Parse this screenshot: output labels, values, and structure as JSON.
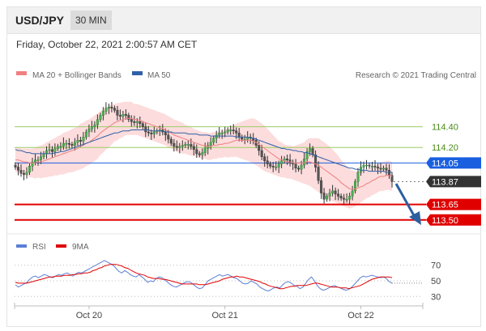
{
  "header": {
    "symbol": "USD/JPY",
    "interval": "30 MIN"
  },
  "datetime": "Friday, October 22, 2021 2:00:57 AM CET",
  "credit": "Research © 2021 Trading Central",
  "colors": {
    "bollinger": "#f08080",
    "ma50": "#3060a8",
    "rsi": "#5b7fd6",
    "rsi_ma": "#e00000",
    "resistance": "#9ccc65",
    "support": "#e00000",
    "pivot": "#1a5fe0",
    "last": "#333333",
    "arrow": "#2c5fa0"
  },
  "chart_data": [
    {
      "type": "candlestick",
      "legend": [
        "MA 20 + Bollinger Bands",
        "MA 50"
      ],
      "ylim": [
        113.42,
        114.78
      ],
      "x_ticks": [
        {
          "label": "Oct 20",
          "index": 26
        },
        {
          "label": "Oct 21",
          "index": 74
        },
        {
          "label": "Oct 22",
          "index": 122
        }
      ],
      "levels": [
        {
          "value": 114.4,
          "label": "114.40",
          "kind": "resistance"
        },
        {
          "value": 114.2,
          "label": "114.20",
          "kind": "resistance"
        },
        {
          "value": 114.05,
          "label": "114.05",
          "kind": "pivot"
        },
        {
          "value": 113.87,
          "label": "113.87",
          "kind": "last"
        },
        {
          "value": 113.65,
          "label": "113.65",
          "kind": "support"
        },
        {
          "value": 113.5,
          "label": "113.50",
          "kind": "support"
        }
      ],
      "close": [
        114.01,
        113.98,
        113.95,
        113.94,
        113.96,
        114.02,
        114.06,
        114.08,
        114.08,
        114.11,
        114.14,
        114.17,
        114.18,
        114.16,
        114.19,
        114.21,
        114.21,
        114.24,
        114.24,
        114.23,
        114.22,
        114.25,
        114.27,
        114.26,
        114.3,
        114.35,
        114.38,
        114.4,
        114.42,
        114.47,
        114.51,
        114.55,
        114.58,
        114.59,
        114.58,
        114.56,
        114.51,
        114.5,
        114.52,
        114.51,
        114.47,
        114.45,
        114.44,
        114.45,
        114.43,
        114.4,
        114.35,
        114.34,
        114.33,
        114.35,
        114.36,
        114.37,
        114.35,
        114.32,
        114.28,
        114.24,
        114.21,
        114.2,
        114.21,
        114.22,
        114.23,
        114.23,
        114.21,
        114.18,
        114.14,
        114.13,
        114.15,
        114.19,
        114.22,
        114.25,
        114.29,
        114.32,
        114.34,
        114.34,
        114.35,
        114.37,
        114.37,
        114.36,
        114.34,
        114.3,
        114.28,
        114.28,
        114.3,
        114.29,
        114.27,
        114.22,
        114.17,
        114.11,
        114.07,
        114.04,
        114.02,
        114.01,
        114.01,
        114.04,
        114.07,
        114.09,
        114.08,
        114.05,
        114.04,
        114.0,
        113.99,
        114.03,
        114.09,
        114.16,
        114.19,
        114.13,
        114.01,
        113.88,
        113.76,
        113.7,
        113.73,
        113.76,
        113.78,
        113.75,
        113.73,
        113.71,
        113.7,
        113.7,
        113.73,
        113.78,
        113.87,
        113.96,
        114.01,
        114.03,
        114.03,
        114.02,
        114.02,
        114.01,
        114.0,
        113.99,
        114.0,
        113.98,
        113.93,
        113.87
      ],
      "ma20": [
        114.08,
        114.08,
        114.07,
        114.06,
        114.06,
        114.05,
        114.05,
        114.05,
        114.06,
        114.06,
        114.07,
        114.08,
        114.09,
        114.1,
        114.11,
        114.12,
        114.13,
        114.14,
        114.15,
        114.16,
        114.17,
        114.18,
        114.19,
        114.21,
        114.22,
        114.24,
        114.25,
        114.27,
        114.29,
        114.31,
        114.34,
        114.36,
        114.38,
        114.4,
        114.42,
        114.44,
        114.45,
        114.46,
        114.47,
        114.48,
        114.48,
        114.48,
        114.47,
        114.47,
        114.46,
        114.45,
        114.44,
        114.43,
        114.42,
        114.41,
        114.4,
        114.39,
        114.38,
        114.37,
        114.35,
        114.34,
        114.32,
        114.31,
        114.3,
        114.29,
        114.28,
        114.27,
        114.26,
        114.25,
        114.24,
        114.23,
        114.22,
        114.22,
        114.21,
        114.21,
        114.22,
        114.22,
        114.23,
        114.23,
        114.24,
        114.24,
        114.25,
        114.26,
        114.27,
        114.27,
        114.27,
        114.27,
        114.27,
        114.27,
        114.26,
        114.25,
        114.23,
        114.21,
        114.19,
        114.17,
        114.15,
        114.13,
        114.11,
        114.09,
        114.08,
        114.07,
        114.06,
        114.06,
        114.05,
        114.05,
        114.05,
        114.05,
        114.05,
        114.06,
        114.06,
        114.05,
        114.04,
        114.03,
        114.01,
        113.99,
        113.97,
        113.95,
        113.93,
        113.91,
        113.89,
        113.86,
        113.84,
        113.82,
        113.8,
        113.8,
        113.8,
        113.81,
        113.82,
        113.83,
        113.85,
        113.86,
        113.88,
        113.89,
        113.91,
        113.92,
        113.92,
        113.93,
        113.93,
        113.92
      ],
      "band_width": [
        0.12,
        0.12,
        0.12,
        0.13,
        0.13,
        0.14,
        0.14,
        0.15,
        0.15,
        0.16,
        0.16,
        0.17,
        0.17,
        0.18,
        0.18,
        0.19,
        0.19,
        0.2,
        0.2,
        0.2,
        0.21,
        0.21,
        0.21,
        0.22,
        0.22,
        0.22,
        0.22,
        0.22,
        0.22,
        0.22,
        0.21,
        0.21,
        0.2,
        0.2,
        0.19,
        0.18,
        0.18,
        0.17,
        0.17,
        0.16,
        0.16,
        0.16,
        0.15,
        0.15,
        0.15,
        0.15,
        0.15,
        0.15,
        0.15,
        0.15,
        0.15,
        0.15,
        0.15,
        0.15,
        0.15,
        0.15,
        0.15,
        0.15,
        0.15,
        0.15,
        0.14,
        0.14,
        0.14,
        0.13,
        0.13,
        0.13,
        0.13,
        0.13,
        0.13,
        0.13,
        0.13,
        0.13,
        0.13,
        0.13,
        0.13,
        0.14,
        0.14,
        0.15,
        0.16,
        0.17,
        0.18,
        0.19,
        0.2,
        0.21,
        0.22,
        0.22,
        0.22,
        0.22,
        0.22,
        0.21,
        0.2,
        0.19,
        0.18,
        0.17,
        0.17,
        0.16,
        0.16,
        0.16,
        0.16,
        0.17,
        0.18,
        0.19,
        0.2,
        0.22,
        0.23,
        0.24,
        0.25,
        0.26,
        0.26,
        0.26,
        0.26,
        0.26,
        0.25,
        0.24,
        0.23,
        0.22,
        0.21,
        0.2,
        0.19,
        0.18,
        0.17,
        0.16,
        0.15,
        0.14,
        0.14,
        0.14,
        0.14,
        0.14,
        0.14,
        0.14,
        0.14,
        0.14,
        0.14,
        0.14,
        0.14,
        0.14
      ],
      "ma50": [
        114.18,
        114.17,
        114.17,
        114.16,
        114.15,
        114.15,
        114.14,
        114.14,
        114.14,
        114.14,
        114.14,
        114.14,
        114.14,
        114.14,
        114.15,
        114.15,
        114.16,
        114.16,
        114.17,
        114.18,
        114.19,
        114.2,
        114.21,
        114.22,
        114.23,
        114.24,
        114.25,
        114.26,
        114.27,
        114.28,
        114.29,
        114.3,
        114.31,
        114.32,
        114.33,
        114.34,
        114.34,
        114.35,
        114.36,
        114.36,
        114.36,
        114.37,
        114.37,
        114.37,
        114.37,
        114.37,
        114.37,
        114.37,
        114.36,
        114.36,
        114.36,
        114.36,
        114.36,
        114.35,
        114.35,
        114.35,
        114.34,
        114.34,
        114.34,
        114.34,
        114.34,
        114.33,
        114.33,
        114.33,
        114.33,
        114.32,
        114.32,
        114.32,
        114.32,
        114.31,
        114.31,
        114.31,
        114.31,
        114.31,
        114.31,
        114.31,
        114.31,
        114.31,
        114.3,
        114.3,
        114.3,
        114.3,
        114.3,
        114.29,
        114.29,
        114.28,
        114.27,
        114.26,
        114.25,
        114.24,
        114.23,
        114.22,
        114.21,
        114.2,
        114.19,
        114.19,
        114.18,
        114.18,
        114.17,
        114.17,
        114.16,
        114.16,
        114.15,
        114.15,
        114.14,
        114.13,
        114.12,
        114.11,
        114.1,
        114.09,
        114.08,
        114.07,
        114.06,
        114.05,
        114.04,
        114.03,
        114.02,
        114.01,
        114.0,
        114.0,
        113.99,
        113.99,
        113.98,
        113.98,
        113.98,
        113.97,
        113.97,
        113.97,
        113.97,
        113.97,
        113.97,
        113.96,
        113.96,
        113.96
      ]
    },
    {
      "type": "line",
      "legend": [
        "RSI",
        "9MA"
      ],
      "ylim": [
        20,
        80
      ],
      "y_ticks": [
        70,
        50,
        30
      ],
      "series": [
        {
          "name": "RSI",
          "values": [
            45,
            42,
            44,
            46,
            48,
            52,
            55,
            56,
            54,
            56,
            58,
            57,
            55,
            54,
            56,
            58,
            57,
            59,
            60,
            58,
            56,
            59,
            61,
            60,
            62,
            64,
            66,
            68,
            70,
            72,
            74,
            76,
            74,
            72,
            70,
            66,
            62,
            60,
            63,
            61,
            58,
            56,
            55,
            58,
            55,
            52,
            48,
            50,
            49,
            53,
            55,
            54,
            51,
            48,
            45,
            43,
            42,
            44,
            46,
            48,
            49,
            48,
            45,
            42,
            40,
            41,
            45,
            50,
            52,
            54,
            56,
            58,
            56,
            57,
            58,
            56,
            54,
            53,
            50,
            47,
            46,
            47,
            50,
            48,
            46,
            42,
            40,
            38,
            37,
            39,
            41,
            42,
            41,
            45,
            48,
            49,
            47,
            44,
            43,
            40,
            42,
            47,
            52,
            55,
            50,
            44,
            40,
            38,
            39,
            41,
            43,
            44,
            42,
            41,
            39,
            38,
            39,
            42,
            46,
            50,
            54,
            56,
            55,
            56,
            57,
            56,
            55,
            54,
            55,
            53,
            49,
            47
          ]
        },
        {
          "name": "9MA",
          "values": [
            48,
            47,
            47,
            47,
            47,
            48,
            49,
            50,
            51,
            52,
            53,
            54,
            55,
            55,
            56,
            56,
            56,
            57,
            57,
            57,
            58,
            58,
            59,
            59,
            60,
            60,
            61,
            63,
            64,
            66,
            67,
            69,
            70,
            71,
            71,
            71,
            70,
            69,
            67,
            66,
            64,
            62,
            60,
            59,
            58,
            57,
            55,
            54,
            53,
            53,
            53,
            52,
            52,
            51,
            50,
            49,
            48,
            47,
            46,
            46,
            46,
            46,
            46,
            46,
            45,
            45,
            45,
            46,
            47,
            48,
            49,
            50,
            52,
            53,
            54,
            55,
            55,
            56,
            55,
            55,
            54,
            53,
            52,
            51,
            50,
            49,
            47,
            46,
            44,
            43,
            42,
            41,
            40,
            40,
            41,
            42,
            43,
            43,
            44,
            44,
            44,
            44,
            45,
            46,
            47,
            47,
            46,
            45,
            44,
            43,
            42,
            42,
            42,
            41,
            41,
            41,
            40,
            41,
            42,
            43,
            44,
            46,
            48,
            50,
            52,
            53,
            54,
            55,
            55,
            55,
            55,
            54
          ]
        }
      ]
    }
  ]
}
